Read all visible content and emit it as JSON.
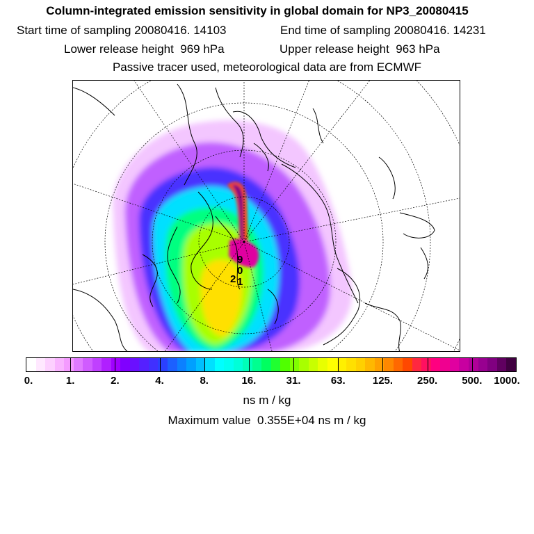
{
  "header": {
    "title": "Column-integrated emission sensitivity in global domain for NP3_20080415",
    "start_label": "Start time of sampling 20080416. 14103",
    "end_label": "End time of sampling 20080416. 14231",
    "lower_label": "Lower release height  969 hPa",
    "upper_label": "Upper release height  963 hPa",
    "info": "Passive tracer used, meteorological data are from ECMWF"
  },
  "map": {
    "projection": "polar-stereographic",
    "point_labels": [
      "9",
      "0",
      "1",
      "2"
    ]
  },
  "colorbar": {
    "colors": [
      "#ffffff",
      "#ffe8ff",
      "#fdd0ff",
      "#f9b4ff",
      "#f49bff",
      "#e07aff",
      "#d05cff",
      "#c040ff",
      "#b020ff",
      "#a000ff",
      "#8000ff",
      "#6a10ff",
      "#5520ff",
      "#4030ff",
      "#2b40ff",
      "#1c60ff",
      "#0c80ff",
      "#00a0ff",
      "#00c0ff",
      "#00e0ff",
      "#00ffff",
      "#00fff0",
      "#00ffd8",
      "#00ffb8",
      "#00ff90",
      "#00ff60",
      "#20ff30",
      "#50ff00",
      "#80ff00",
      "#a8ff00",
      "#c8ff00",
      "#e8ff00",
      "#ffff00",
      "#fff000",
      "#ffe000",
      "#ffd000",
      "#ffb800",
      "#ffa000",
      "#ff8800",
      "#ff6800",
      "#ff4800",
      "#ff2840",
      "#ff1060",
      "#ff0080",
      "#f00090",
      "#e000a0",
      "#c800a0",
      "#b00098",
      "#980090",
      "#800080",
      "#600060",
      "#400040"
    ],
    "tick_labels": [
      "0.",
      "1.",
      "2.",
      "4.",
      "8.",
      "16.",
      "31.",
      "63.",
      "125.",
      "250.",
      "500.",
      "1000."
    ]
  },
  "units_label": "ns m / kg",
  "max_label": "Maximum value  0.355E+04 ns m / kg"
}
